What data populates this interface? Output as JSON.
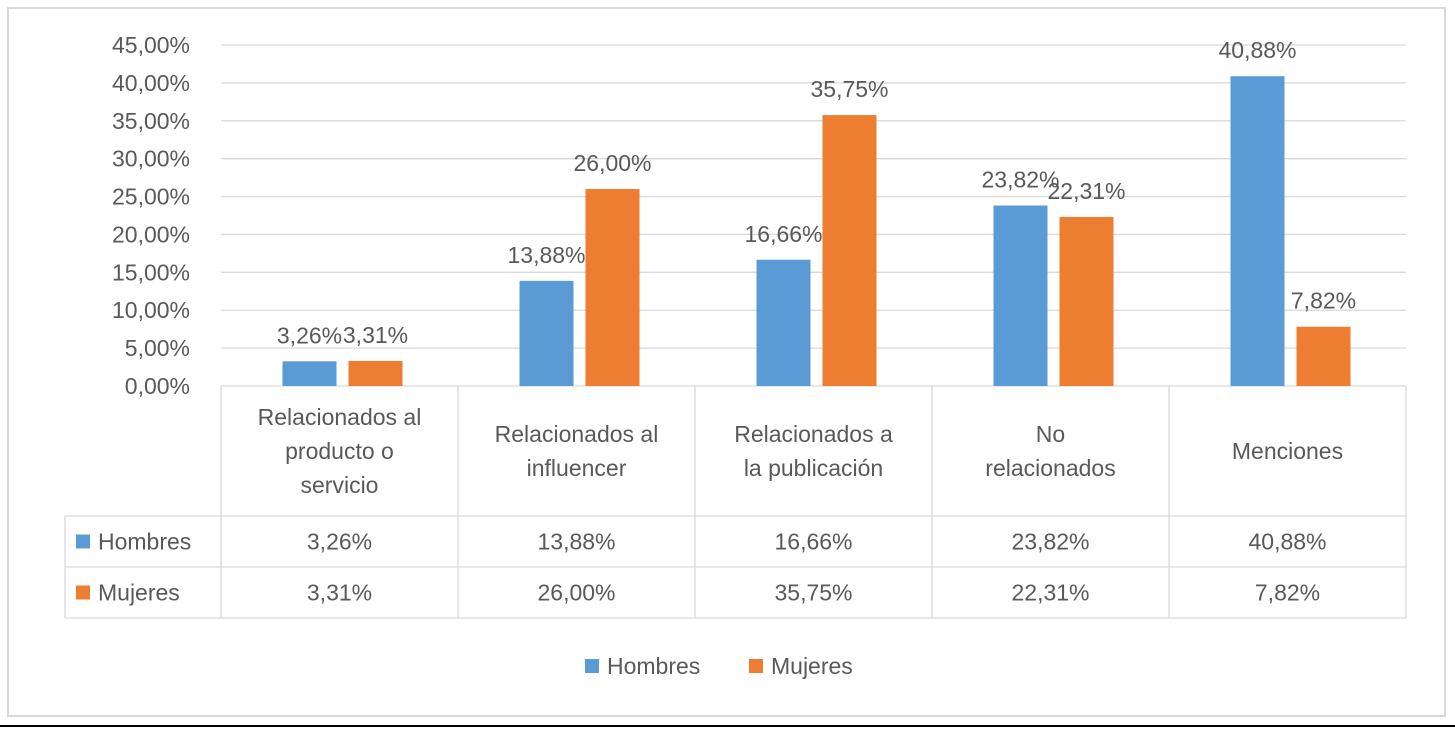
{
  "chart_data": {
    "type": "bar",
    "categories": [
      [
        "Relacionados al",
        "producto o",
        "servicio"
      ],
      [
        "Relacionados al",
        "influencer"
      ],
      [
        "Relacionados a",
        "la publicación"
      ],
      [
        "No",
        "relacionados"
      ],
      [
        "Menciones"
      ]
    ],
    "series": [
      {
        "name": "Hombres",
        "color": "#5b9bd5",
        "values": [
          3.26,
          13.88,
          16.66,
          23.82,
          40.88
        ],
        "labels": [
          "3,26%",
          "13,88%",
          "16,66%",
          "23,82%",
          "40,88%"
        ]
      },
      {
        "name": "Mujeres",
        "color": "#ed7d31",
        "values": [
          3.31,
          26.0,
          35.75,
          22.31,
          7.82
        ],
        "labels": [
          "3,31%",
          "26,00%",
          "35,75%",
          "22,31%",
          "7,82%"
        ]
      }
    ],
    "yticks": [
      "0,00%",
      "5,00%",
      "10,00%",
      "15,00%",
      "20,00%",
      "25,00%",
      "30,00%",
      "35,00%",
      "40,00%",
      "45,00%"
    ],
    "ylim": [
      0,
      45
    ],
    "grid": true,
    "data_table": true,
    "legend_position": "bottom"
  }
}
